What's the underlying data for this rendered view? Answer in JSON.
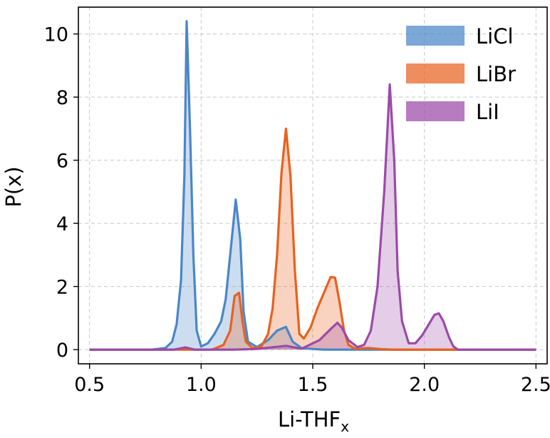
{
  "chart_data": {
    "type": "area",
    "title": "",
    "xlabel": "Li-THF",
    "xlabel_subscript": "x",
    "ylabel": "P(x)",
    "xlim": [
      0.45,
      2.55
    ],
    "ylim": [
      -0.45,
      10.85
    ],
    "xticks": [
      0.5,
      1.0,
      1.5,
      2.0,
      2.5
    ],
    "yticks": [
      0,
      2,
      4,
      6,
      8,
      10
    ],
    "xtick_labels": [
      "0.5",
      "1.0",
      "1.5",
      "2.0",
      "2.5"
    ],
    "ytick_labels": [
      "0",
      "2",
      "4",
      "6",
      "8",
      "10"
    ],
    "grid": true,
    "legend_position": "top-right",
    "series": [
      {
        "name": "LiCl",
        "color": "#4a86c8",
        "points": [
          [
            0.5,
            0
          ],
          [
            0.78,
            0
          ],
          [
            0.84,
            0.05
          ],
          [
            0.87,
            0.25
          ],
          [
            0.89,
            0.8
          ],
          [
            0.91,
            2.2
          ],
          [
            0.925,
            5.5
          ],
          [
            0.935,
            10.4
          ],
          [
            0.95,
            7.0
          ],
          [
            0.965,
            3.0
          ],
          [
            0.98,
            0.6
          ],
          [
            1.0,
            0.1
          ],
          [
            1.03,
            0.2
          ],
          [
            1.06,
            0.5
          ],
          [
            1.09,
            0.9
          ],
          [
            1.11,
            1.6
          ],
          [
            1.13,
            3.0
          ],
          [
            1.155,
            4.75
          ],
          [
            1.175,
            3.5
          ],
          [
            1.19,
            1.2
          ],
          [
            1.21,
            0.25
          ],
          [
            1.25,
            0.08
          ],
          [
            1.3,
            0.3
          ],
          [
            1.34,
            0.6
          ],
          [
            1.38,
            0.72
          ],
          [
            1.41,
            0.25
          ],
          [
            1.45,
            0.05
          ],
          [
            1.5,
            0.02
          ],
          [
            1.55,
            0
          ],
          [
            2.5,
            0
          ]
        ]
      },
      {
        "name": "LiBr",
        "color": "#e8611e",
        "points": [
          [
            0.5,
            0
          ],
          [
            1.05,
            0
          ],
          [
            1.1,
            0.15
          ],
          [
            1.13,
            0.6
          ],
          [
            1.15,
            1.7
          ],
          [
            1.17,
            1.8
          ],
          [
            1.185,
            0.9
          ],
          [
            1.2,
            0.25
          ],
          [
            1.23,
            0.05
          ],
          [
            1.27,
            0.1
          ],
          [
            1.3,
            0.5
          ],
          [
            1.32,
            1.3
          ],
          [
            1.34,
            3.0
          ],
          [
            1.36,
            5.6
          ],
          [
            1.38,
            7.0
          ],
          [
            1.4,
            5.5
          ],
          [
            1.42,
            2.5
          ],
          [
            1.44,
            0.5
          ],
          [
            1.46,
            0.35
          ],
          [
            1.49,
            0.7
          ],
          [
            1.52,
            1.3
          ],
          [
            1.55,
            1.8
          ],
          [
            1.58,
            2.3
          ],
          [
            1.6,
            2.28
          ],
          [
            1.62,
            1.5
          ],
          [
            1.64,
            0.6
          ],
          [
            1.66,
            0.15
          ],
          [
            1.69,
            0.03
          ],
          [
            1.75,
            0.05
          ],
          [
            1.8,
            0.02
          ],
          [
            1.85,
            0
          ],
          [
            2.5,
            0
          ]
        ]
      },
      {
        "name": "LiI",
        "color": "#9b4aa8",
        "points": [
          [
            0.5,
            0
          ],
          [
            0.88,
            0
          ],
          [
            0.93,
            0.07
          ],
          [
            0.97,
            0
          ],
          [
            1.15,
            0
          ],
          [
            1.25,
            0.02
          ],
          [
            1.38,
            0.12
          ],
          [
            1.45,
            0.03
          ],
          [
            1.53,
            0.3
          ],
          [
            1.58,
            0.65
          ],
          [
            1.61,
            0.85
          ],
          [
            1.63,
            0.7
          ],
          [
            1.66,
            0.3
          ],
          [
            1.7,
            0.08
          ],
          [
            1.73,
            0.15
          ],
          [
            1.76,
            0.6
          ],
          [
            1.79,
            2.0
          ],
          [
            1.82,
            5.0
          ],
          [
            1.845,
            8.4
          ],
          [
            1.865,
            6.0
          ],
          [
            1.88,
            2.5
          ],
          [
            1.9,
            0.9
          ],
          [
            1.93,
            0.2
          ],
          [
            1.96,
            0.2
          ],
          [
            1.99,
            0.45
          ],
          [
            2.02,
            0.8
          ],
          [
            2.045,
            1.1
          ],
          [
            2.065,
            1.15
          ],
          [
            2.085,
            0.9
          ],
          [
            2.11,
            0.4
          ],
          [
            2.13,
            0.1
          ],
          [
            2.15,
            0
          ],
          [
            2.5,
            0
          ]
        ]
      }
    ]
  }
}
